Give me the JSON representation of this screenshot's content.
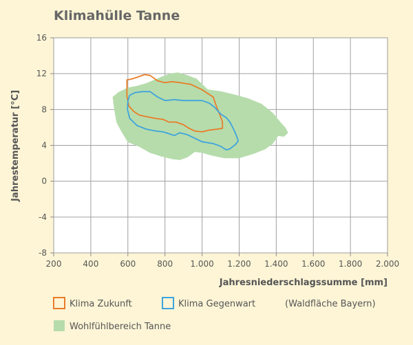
{
  "chart_data": {
    "type": "area",
    "title": "Klimahülle Tanne",
    "xlabel": "Jahresniederschlagssumme [mm]",
    "ylabel": "Jahrestemperatur [°C]",
    "xlim": [
      200,
      2000
    ],
    "ylim": [
      -8,
      16
    ],
    "x_ticks": [
      200,
      400,
      600,
      800,
      1000,
      1200,
      1400,
      1600,
      1800,
      2000
    ],
    "x_tick_labels": [
      "200",
      "400",
      "600",
      "800",
      "1.000",
      "1.200",
      "1.400",
      "1.600",
      "1.800",
      "2.000"
    ],
    "y_ticks": [
      -8,
      -4,
      0,
      4,
      8,
      12,
      16
    ],
    "y_tick_labels": [
      "-8",
      "-4",
      "0",
      "4",
      "8",
      "12",
      "16"
    ],
    "grid": true,
    "legend_placement": "bottom",
    "legend_note": "(Waldfläche Bayern)",
    "series": [
      {
        "name": "Wohlfühlbereich Tanne",
        "kind": "area",
        "color": "#b6dcac",
        "points": [
          [
            520,
            9.4
          ],
          [
            550,
            9.9
          ],
          [
            600,
            10.4
          ],
          [
            650,
            10.6
          ],
          [
            700,
            10.9
          ],
          [
            780,
            11.6
          ],
          [
            830,
            12.0
          ],
          [
            870,
            12.1
          ],
          [
            920,
            11.8
          ],
          [
            970,
            11.4
          ],
          [
            1030,
            10.2
          ],
          [
            1100,
            10.0
          ],
          [
            1180,
            9.6
          ],
          [
            1250,
            9.2
          ],
          [
            1320,
            8.6
          ],
          [
            1380,
            7.6
          ],
          [
            1420,
            6.6
          ],
          [
            1450,
            5.9
          ],
          [
            1462,
            5.4
          ],
          [
            1440,
            5.0
          ],
          [
            1410,
            5.1
          ],
          [
            1380,
            4.2
          ],
          [
            1340,
            3.6
          ],
          [
            1280,
            3.1
          ],
          [
            1200,
            2.6
          ],
          [
            1120,
            2.6
          ],
          [
            1050,
            2.9
          ],
          [
            1000,
            3.2
          ],
          [
            960,
            3.3
          ],
          [
            920,
            2.7
          ],
          [
            880,
            2.4
          ],
          [
            840,
            2.5
          ],
          [
            780,
            2.8
          ],
          [
            720,
            3.2
          ],
          [
            660,
            3.9
          ],
          [
            600,
            4.4
          ],
          [
            560,
            5.8
          ],
          [
            540,
            6.6
          ],
          [
            525,
            8.4
          ]
        ]
      },
      {
        "name": "Klima Zukunft",
        "kind": "outline",
        "color": "#e87d28",
        "points": [
          [
            595,
            11.3
          ],
          [
            620,
            11.4
          ],
          [
            650,
            11.6
          ],
          [
            690,
            11.9
          ],
          [
            720,
            11.8
          ],
          [
            760,
            11.2
          ],
          [
            800,
            11.0
          ],
          [
            840,
            11.1
          ],
          [
            880,
            11.0
          ],
          [
            910,
            10.9
          ],
          [
            940,
            10.8
          ],
          [
            970,
            10.5
          ],
          [
            1000,
            10.2
          ],
          [
            1030,
            9.8
          ],
          [
            1060,
            9.4
          ],
          [
            1080,
            8.2
          ],
          [
            1100,
            7.2
          ],
          [
            1110,
            6.6
          ],
          [
            1110,
            5.9
          ],
          [
            1080,
            5.8
          ],
          [
            1040,
            5.7
          ],
          [
            1000,
            5.5
          ],
          [
            960,
            5.6
          ],
          [
            930,
            5.9
          ],
          [
            900,
            6.3
          ],
          [
            860,
            6.6
          ],
          [
            820,
            6.6
          ],
          [
            790,
            6.9
          ],
          [
            750,
            7.0
          ],
          [
            700,
            7.2
          ],
          [
            660,
            7.4
          ],
          [
            630,
            7.8
          ],
          [
            605,
            8.4
          ],
          [
            595,
            9.5
          ],
          [
            595,
            10.5
          ]
        ]
      },
      {
        "name": "Klima Gegenwart",
        "kind": "outline",
        "color": "#3ea3dc",
        "points": [
          [
            610,
            9.6
          ],
          [
            640,
            9.9
          ],
          [
            680,
            10.0
          ],
          [
            720,
            10.0
          ],
          [
            760,
            9.4
          ],
          [
            800,
            9.0
          ],
          [
            850,
            9.1
          ],
          [
            900,
            9.0
          ],
          [
            950,
            9.0
          ],
          [
            1000,
            9.0
          ],
          [
            1040,
            8.7
          ],
          [
            1070,
            8.2
          ],
          [
            1100,
            7.5
          ],
          [
            1130,
            7.1
          ],
          [
            1150,
            6.6
          ],
          [
            1170,
            5.8
          ],
          [
            1185,
            5.1
          ],
          [
            1195,
            4.5
          ],
          [
            1180,
            4.1
          ],
          [
            1150,
            3.6
          ],
          [
            1130,
            3.5
          ],
          [
            1100,
            3.9
          ],
          [
            1060,
            4.2
          ],
          [
            1030,
            4.3
          ],
          [
            1000,
            4.4
          ],
          [
            960,
            4.8
          ],
          [
            920,
            5.2
          ],
          [
            880,
            5.4
          ],
          [
            850,
            5.1
          ],
          [
            820,
            5.3
          ],
          [
            790,
            5.5
          ],
          [
            750,
            5.6
          ],
          [
            700,
            5.8
          ],
          [
            650,
            6.2
          ],
          [
            610,
            7.0
          ],
          [
            598,
            8.0
          ],
          [
            600,
            9.0
          ]
        ]
      }
    ]
  }
}
